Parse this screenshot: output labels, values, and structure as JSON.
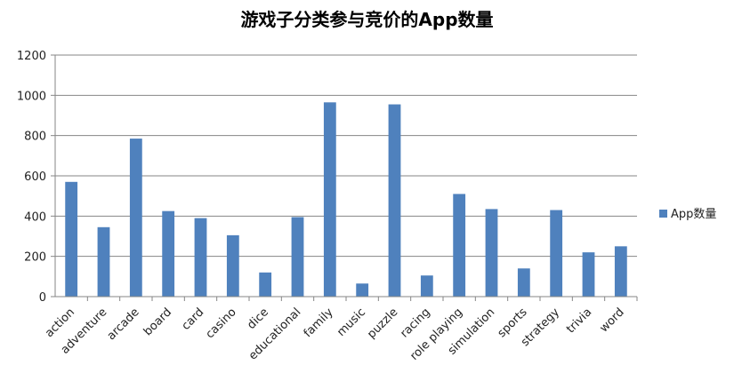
{
  "chart_data": {
    "type": "bar",
    "title": "游戏子分类参与竞价的App数量",
    "xlabel": "",
    "ylabel": "",
    "ylim": [
      0,
      1200
    ],
    "yticks": [
      0,
      200,
      400,
      600,
      800,
      1000,
      1200
    ],
    "grid": true,
    "legend_position": "right",
    "categories": [
      "action",
      "adventure",
      "arcade",
      "board",
      "card",
      "casino",
      "dice",
      "educational",
      "family",
      "music",
      "puzzle",
      "racing",
      "role playing",
      "simulation",
      "sports",
      "strategy",
      "trivia",
      "word"
    ],
    "series": [
      {
        "name": "App数量",
        "color": "#4f81bd",
        "values": [
          570,
          345,
          785,
          425,
          390,
          305,
          120,
          395,
          965,
          65,
          955,
          105,
          510,
          435,
          140,
          430,
          220,
          250
        ]
      }
    ]
  }
}
